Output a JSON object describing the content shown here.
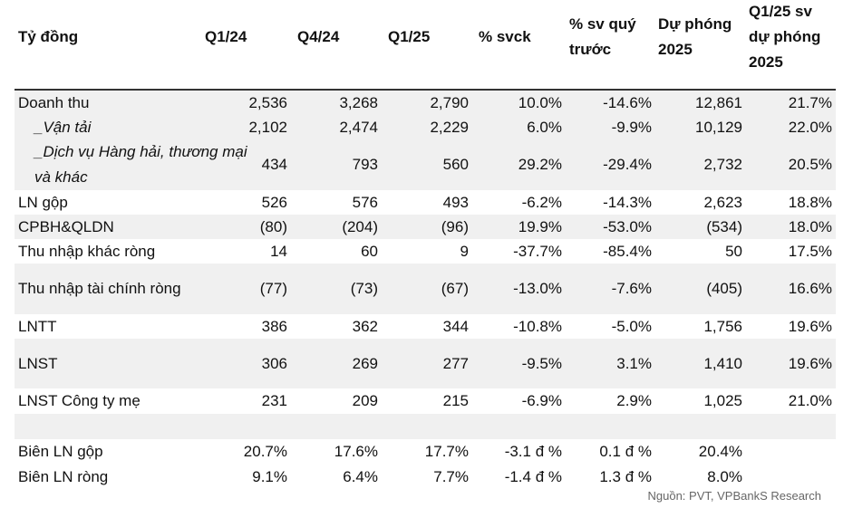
{
  "headers": [
    "Tỷ đồng",
    "Q1/24",
    "Q4/24",
    "Q1/25",
    "% svck",
    "% sv quý trước",
    "Dự phóng 2025",
    "Q1/25 sv dự phóng 2025"
  ],
  "rows": [
    {
      "label": "Doanh thu",
      "values": [
        "2,536",
        "3,268",
        "2,790",
        "10.0%",
        "-14.6%",
        "12,861",
        "21.7%"
      ]
    },
    {
      "label": "_Vận tải",
      "values": [
        "2,102",
        "2,474",
        "2,229",
        "6.0%",
        "-9.9%",
        "10,129",
        "22.0%"
      ]
    },
    {
      "label": "_Dịch vụ Hàng hải, thương mại và khác",
      "values": [
        "434",
        "793",
        "560",
        "29.2%",
        "-29.4%",
        "2,732",
        "20.5%"
      ]
    },
    {
      "label": "LN gộp",
      "values": [
        "526",
        "576",
        "493",
        "-6.2%",
        "-14.3%",
        "2,623",
        "18.8%"
      ]
    },
    {
      "label": "CPBH&QLDN",
      "values": [
        "(80)",
        "(204)",
        "(96)",
        "19.9%",
        "-53.0%",
        "(534)",
        "18.0%"
      ]
    },
    {
      "label": "Thu nhập khác ròng",
      "values": [
        "14",
        "60",
        "9",
        "-37.7%",
        "-85.4%",
        "50",
        "17.5%"
      ]
    },
    {
      "label": "Thu nhập tài chính ròng",
      "values": [
        "(77)",
        "(73)",
        "(67)",
        "-13.0%",
        "-7.6%",
        "(405)",
        "16.6%"
      ]
    },
    {
      "label": "LNTT",
      "values": [
        "386",
        "362",
        "344",
        "-10.8%",
        "-5.0%",
        "1,756",
        "19.6%"
      ]
    },
    {
      "label": "LNST",
      "values": [
        "306",
        "269",
        "277",
        "-9.5%",
        "3.1%",
        "1,410",
        "19.6%"
      ]
    },
    {
      "label": "LNST Công ty mẹ",
      "values": [
        "231",
        "209",
        "215",
        "-6.9%",
        "2.9%",
        "1,025",
        "21.0%"
      ]
    },
    {
      "label": "",
      "values": [
        "",
        "",
        "",
        "",
        "",
        "",
        ""
      ]
    },
    {
      "label": "Biên LN gộp",
      "values": [
        "20.7%",
        "17.6%",
        "17.7%",
        "-3.1 đ %",
        "0.1 đ %",
        "20.4%",
        ""
      ]
    },
    {
      "label": "Biên LN ròng",
      "values": [
        "9.1%",
        "6.4%",
        "7.7%",
        "-1.4 đ %",
        "1.3 đ %",
        "8.0%",
        ""
      ]
    }
  ],
  "source": "Nguồn: PVT, VPBankS Research"
}
